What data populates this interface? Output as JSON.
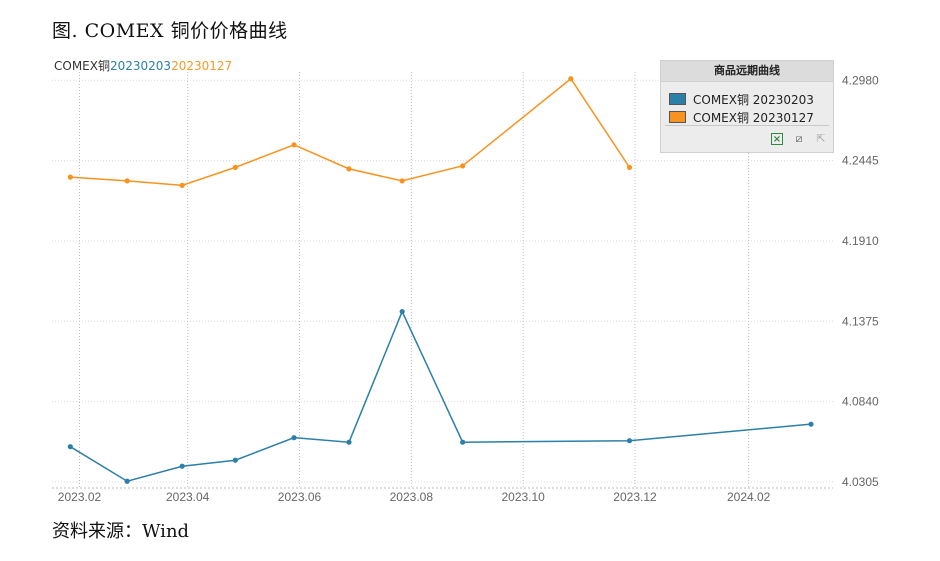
{
  "figure_title": "图. COMEX 铜价价格曲线",
  "subtitle": {
    "prefix": "COMEX铜",
    "series1": "20230203",
    "series2": "20230127"
  },
  "source": "资料来源：Wind",
  "legend": {
    "title": "商品远期曲线",
    "items": [
      {
        "label": "COMEX铜 20230203",
        "color": "#2c7fa8"
      },
      {
        "label": "COMEX铜 20230127",
        "color": "#f7931e"
      }
    ],
    "tools": [
      "excel-icon",
      "crop-icon",
      "expand-icon"
    ]
  },
  "chart_data": {
    "type": "line",
    "title": "",
    "xlabel": "",
    "ylabel": "",
    "x_ticks": [
      "2023.02",
      "2023.04",
      "2023.06",
      "2023.08",
      "2023.10",
      "2023.12",
      "2024.02"
    ],
    "y_ticks": [
      4.0305,
      4.084,
      4.1375,
      4.191,
      4.2445,
      4.298
    ],
    "ylim": [
      4.0265,
      4.3035
    ],
    "xlim": [
      "2023-01-17",
      "2024-03-18"
    ],
    "grid": true,
    "legend_position": "top-right",
    "series": [
      {
        "name": "COMEX铜 20230203",
        "color": "#2c7fa8",
        "points": [
          {
            "x": "2023-01-27",
            "y": 4.054
          },
          {
            "x": "2023-02-27",
            "y": 4.031
          },
          {
            "x": "2023-03-29",
            "y": 4.041
          },
          {
            "x": "2023-04-27",
            "y": 4.045
          },
          {
            "x": "2023-05-29",
            "y": 4.06
          },
          {
            "x": "2023-06-28",
            "y": 4.057
          },
          {
            "x": "2023-07-27",
            "y": 4.144
          },
          {
            "x": "2023-08-29",
            "y": 4.057
          },
          {
            "x": "2023-11-28",
            "y": 4.058
          },
          {
            "x": "2024-03-06",
            "y": 4.069
          }
        ]
      },
      {
        "name": "COMEX铜 20230127",
        "color": "#f7931e",
        "points": [
          {
            "x": "2023-01-27",
            "y": 4.2335
          },
          {
            "x": "2023-02-27",
            "y": 4.231
          },
          {
            "x": "2023-03-29",
            "y": 4.228
          },
          {
            "x": "2023-04-27",
            "y": 4.24
          },
          {
            "x": "2023-05-29",
            "y": 4.255
          },
          {
            "x": "2023-06-28",
            "y": 4.239
          },
          {
            "x": "2023-07-27",
            "y": 4.231
          },
          {
            "x": "2023-08-29",
            "y": 4.241
          },
          {
            "x": "2023-10-27",
            "y": 4.299
          },
          {
            "x": "2023-11-28",
            "y": 4.24
          }
        ]
      }
    ]
  }
}
